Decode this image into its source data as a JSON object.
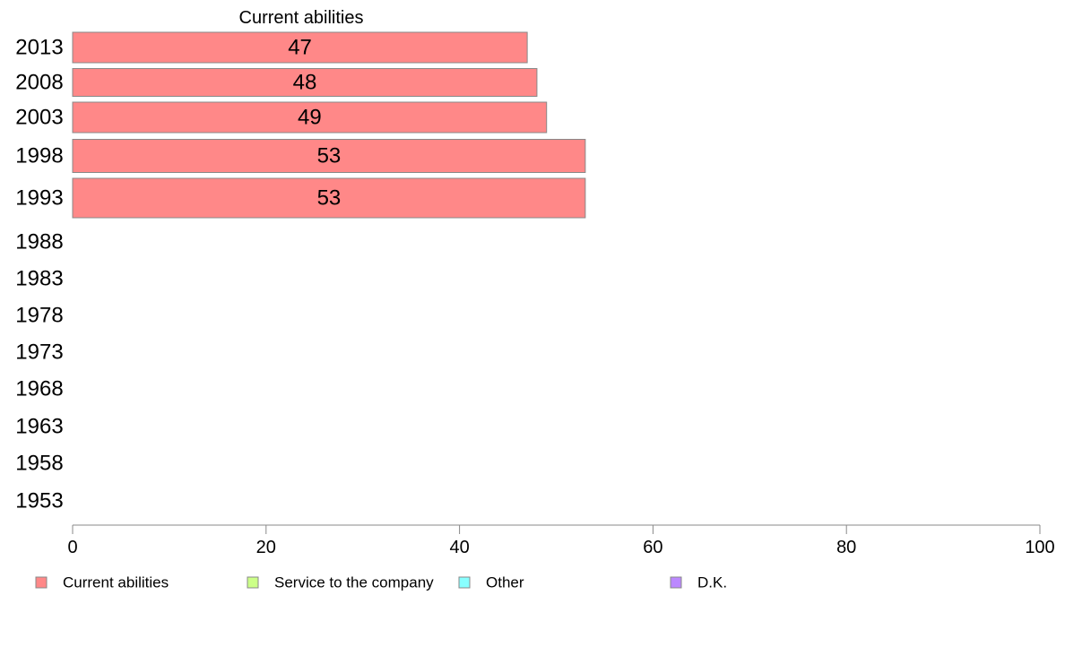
{
  "chart_data": {
    "type": "bar",
    "orientation": "horizontal",
    "stacked": true,
    "categories": [
      "2013",
      "2008",
      "2003",
      "1998",
      "1993",
      "1988",
      "1983",
      "1978",
      "1973",
      "1968",
      "1963",
      "1958",
      "1953"
    ],
    "series": [
      {
        "name": "Current abilities",
        "color": "#ff8888",
        "values": [
          47,
          48,
          49,
          53,
          53,
          null,
          null,
          null,
          null,
          null,
          null,
          null,
          null
        ],
        "labels": [
          "47",
          "48",
          "49",
          "53",
          "53",
          "",
          "",
          "",
          "",
          "",
          "",
          "",
          ""
        ]
      },
      {
        "name": "Service to the company",
        "color": "#ccff88",
        "values": [
          null,
          null,
          null,
          null,
          null,
          null,
          null,
          null,
          null,
          null,
          null,
          null,
          null
        ],
        "labels": [
          "",
          "",
          "",
          "",
          "",
          "",
          "",
          "",
          "",
          "",
          "",
          "",
          ""
        ]
      },
      {
        "name": "Other",
        "color": "#88ffff",
        "values": [
          null,
          null,
          null,
          null,
          null,
          null,
          null,
          null,
          null,
          null,
          null,
          null,
          null
        ],
        "labels": [
          "",
          "",
          "",
          "",
          "",
          "",
          "",
          "",
          "",
          "",
          "",
          "",
          ""
        ]
      },
      {
        "name": "D.K.",
        "color": "#bb88ff",
        "values": [
          null,
          null,
          null,
          null,
          null,
          null,
          null,
          null,
          null,
          null,
          null,
          null,
          null
        ],
        "labels": [
          "",
          "",
          "",
          "",
          "",
          "",
          "",
          "",
          "",
          "",
          "",
          "",
          ""
        ]
      }
    ],
    "column_headers": [
      "Current abilities"
    ],
    "xlim": [
      0,
      100
    ],
    "xticks": [
      "0",
      "20",
      "40",
      "60",
      "80",
      "100"
    ],
    "grid": false,
    "legend_position": "bottom",
    "bar_stroke_color": "#888888",
    "axis_color": "#888888"
  }
}
